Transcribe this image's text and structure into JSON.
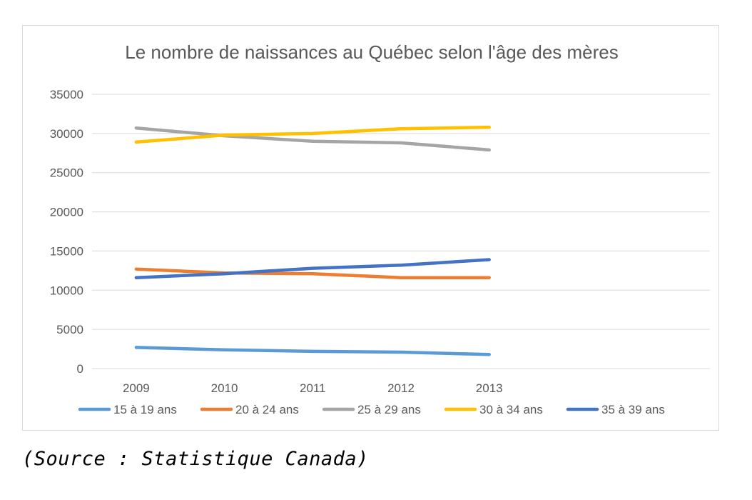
{
  "source_note": "(Source : Statistique Canada)",
  "colors": {
    "grid": "#d9d9d9",
    "text": "#595959"
  },
  "chart_data": {
    "type": "line",
    "title": "Le nombre de naissances au Québec selon l'âge des mères",
    "xlabel": "",
    "ylabel": "",
    "categories": [
      "2009",
      "2010",
      "2011",
      "2012",
      "2013"
    ],
    "ylim": [
      0,
      35000
    ],
    "yticks": [
      0,
      5000,
      10000,
      15000,
      20000,
      25000,
      30000,
      35000
    ],
    "ytick_labels": [
      "0",
      "5000",
      "10000",
      "15000",
      "20000",
      "25000",
      "30000",
      "35000"
    ],
    "grid": true,
    "legend_position": "bottom",
    "series": [
      {
        "name": "15 à 19 ans",
        "color": "#5b9bd5",
        "values": [
          2700,
          2400,
          2200,
          2100,
          1800
        ]
      },
      {
        "name": "20 à 24 ans",
        "color": "#ed7d31",
        "values": [
          12700,
          12200,
          12100,
          11600,
          11600
        ]
      },
      {
        "name": "25 à 29 ans",
        "color": "#a5a5a5",
        "values": [
          30700,
          29700,
          29000,
          28800,
          27900
        ]
      },
      {
        "name": "30 à 34 ans",
        "color": "#ffc000",
        "values": [
          28900,
          29800,
          30000,
          30600,
          30800
        ]
      },
      {
        "name": "35 à 39 ans",
        "color": "#4472c4",
        "values": [
          11600,
          12100,
          12800,
          13200,
          13900
        ]
      }
    ]
  }
}
